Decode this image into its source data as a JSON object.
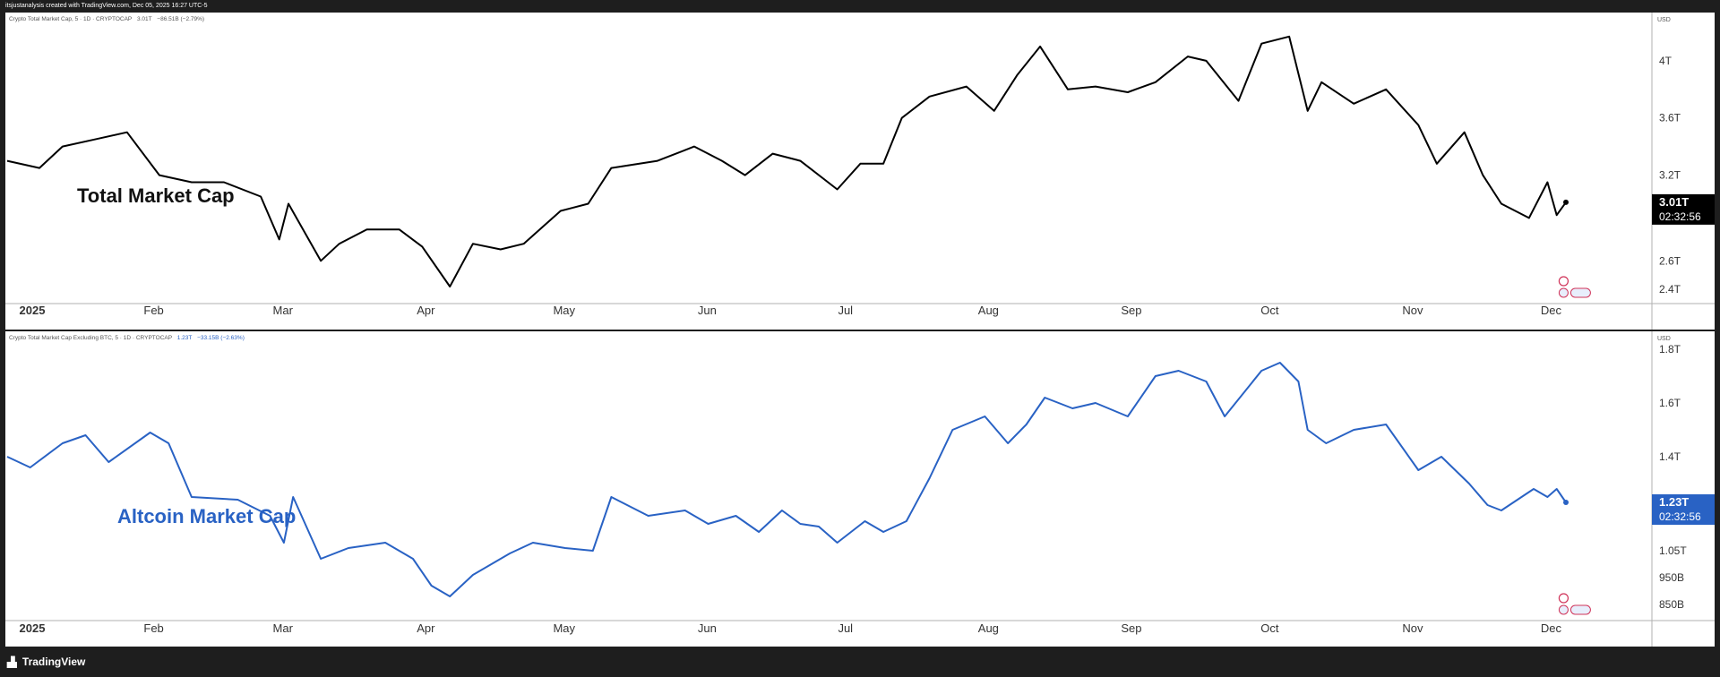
{
  "header": {
    "text": "itsjustanalysis created with TradingView.com, Dec 05, 2025 16:27 UTC-5"
  },
  "footer": {
    "brand": "TradingView",
    "logo_icon": "tradingview-logo-icon"
  },
  "months": [
    "2025",
    "Feb",
    "Mar",
    "Apr",
    "May",
    "Jun",
    "Jul",
    "Aug",
    "Sep",
    "Oct",
    "Nov",
    "Dec"
  ],
  "chart_data": [
    {
      "type": "line",
      "legend_title": "Crypto Total Market Cap, 5 · 1D · CRYPTOCAP",
      "legend_value": "3.01T",
      "legend_change": "−86.51B (−2.79%)",
      "annotation": "Total Market Cap",
      "currency": "USD",
      "color": "#000000",
      "y_ticks": [
        {
          "v": 2.4,
          "label": "2.4T"
        },
        {
          "v": 2.6,
          "label": "2.6T"
        },
        {
          "v": 3.2,
          "label": "3.2T"
        },
        {
          "v": 3.6,
          "label": "3.6T"
        },
        {
          "v": 4.0,
          "label": "4T"
        }
      ],
      "ylim": [
        2.32,
        4.25
      ],
      "last_label": "3.01T",
      "countdown": "02:32:56",
      "series": [
        {
          "x": [
            "2025-01-01",
            "2025-01-08",
            "2025-01-13",
            "2025-01-20",
            "2025-01-27",
            "2025-02-03",
            "2025-02-10",
            "2025-02-17",
            "2025-02-25",
            "2025-03-01",
            "2025-03-03",
            "2025-03-10",
            "2025-03-14",
            "2025-03-20",
            "2025-03-27",
            "2025-04-01",
            "2025-04-07",
            "2025-04-12",
            "2025-04-18",
            "2025-04-23",
            "2025-05-01",
            "2025-05-07",
            "2025-05-12",
            "2025-05-22",
            "2025-05-30",
            "2025-06-05",
            "2025-06-10",
            "2025-06-16",
            "2025-06-22",
            "2025-06-30",
            "2025-07-05",
            "2025-07-10",
            "2025-07-14",
            "2025-07-20",
            "2025-07-28",
            "2025-08-03",
            "2025-08-08",
            "2025-08-13",
            "2025-08-19",
            "2025-08-25",
            "2025-09-01",
            "2025-09-07",
            "2025-09-14",
            "2025-09-18",
            "2025-09-25",
            "2025-09-30",
            "2025-10-06",
            "2025-10-10",
            "2025-10-13",
            "2025-10-20",
            "2025-10-27",
            "2025-11-03",
            "2025-11-07",
            "2025-11-13",
            "2025-11-17",
            "2025-11-21",
            "2025-11-27",
            "2025-12-01",
            "2025-12-03",
            "2025-12-05"
          ],
          "values": [
            3.3,
            3.25,
            3.4,
            3.45,
            3.5,
            3.2,
            3.15,
            3.15,
            3.05,
            2.75,
            3.0,
            2.6,
            2.72,
            2.82,
            2.82,
            2.7,
            2.42,
            2.72,
            2.68,
            2.72,
            2.95,
            3.0,
            3.25,
            3.3,
            3.4,
            3.3,
            3.2,
            3.35,
            3.3,
            3.1,
            3.28,
            3.28,
            3.6,
            3.75,
            3.82,
            3.65,
            3.9,
            4.1,
            3.8,
            3.82,
            3.78,
            3.85,
            4.03,
            4.0,
            3.72,
            4.12,
            4.17,
            3.65,
            3.85,
            3.7,
            3.8,
            3.55,
            3.28,
            3.5,
            3.2,
            3.0,
            2.9,
            3.15,
            2.92,
            3.01
          ]
        }
      ]
    },
    {
      "type": "line",
      "legend_title": "Crypto Total Market Cap Excluding BTC, 5 · 1D · CRYPTOCAP",
      "legend_value": "1.23T",
      "legend_change": "−33.15B (−2.63%)",
      "annotation": "Altcoin Market Cap",
      "currency": "USD",
      "color": "#2962c4",
      "y_ticks": [
        {
          "v": 0.85,
          "label": "850B"
        },
        {
          "v": 0.95,
          "label": "950B"
        },
        {
          "v": 1.05,
          "label": "1.05T"
        },
        {
          "v": 1.4,
          "label": "1.4T"
        },
        {
          "v": 1.6,
          "label": "1.6T"
        },
        {
          "v": 1.8,
          "label": "1.8T"
        }
      ],
      "ylim": [
        0.8,
        1.82
      ],
      "last_label": "1.23T",
      "countdown": "02:32:56",
      "series": [
        {
          "x": [
            "2025-01-01",
            "2025-01-06",
            "2025-01-13",
            "2025-01-18",
            "2025-01-23",
            "2025-02-01",
            "2025-02-05",
            "2025-02-10",
            "2025-02-20",
            "2025-02-27",
            "2025-03-02",
            "2025-03-04",
            "2025-03-10",
            "2025-03-16",
            "2025-03-24",
            "2025-03-30",
            "2025-04-03",
            "2025-04-07",
            "2025-04-12",
            "2025-04-20",
            "2025-04-25",
            "2025-05-02",
            "2025-05-08",
            "2025-05-12",
            "2025-05-20",
            "2025-05-28",
            "2025-06-02",
            "2025-06-08",
            "2025-06-13",
            "2025-06-18",
            "2025-06-22",
            "2025-06-26",
            "2025-06-30",
            "2025-07-06",
            "2025-07-10",
            "2025-07-15",
            "2025-07-20",
            "2025-07-25",
            "2025-08-01",
            "2025-08-06",
            "2025-08-10",
            "2025-08-14",
            "2025-08-20",
            "2025-08-25",
            "2025-09-01",
            "2025-09-07",
            "2025-09-12",
            "2025-09-18",
            "2025-09-22",
            "2025-09-30",
            "2025-10-04",
            "2025-10-08",
            "2025-10-10",
            "2025-10-14",
            "2025-10-20",
            "2025-10-27",
            "2025-11-03",
            "2025-11-08",
            "2025-11-14",
            "2025-11-18",
            "2025-11-21",
            "2025-11-28",
            "2025-12-01",
            "2025-12-03",
            "2025-12-05"
          ],
          "values": [
            1.4,
            1.36,
            1.45,
            1.48,
            1.38,
            1.49,
            1.45,
            1.25,
            1.24,
            1.18,
            1.08,
            1.25,
            1.02,
            1.06,
            1.08,
            1.02,
            0.92,
            0.88,
            0.96,
            1.04,
            1.08,
            1.06,
            1.05,
            1.25,
            1.18,
            1.2,
            1.15,
            1.18,
            1.12,
            1.2,
            1.15,
            1.14,
            1.08,
            1.16,
            1.12,
            1.16,
            1.32,
            1.5,
            1.55,
            1.45,
            1.52,
            1.62,
            1.58,
            1.6,
            1.55,
            1.7,
            1.72,
            1.68,
            1.55,
            1.72,
            1.75,
            1.68,
            1.5,
            1.45,
            1.5,
            1.52,
            1.35,
            1.4,
            1.3,
            1.22,
            1.2,
            1.28,
            1.25,
            1.28,
            1.23
          ]
        }
      ]
    }
  ]
}
